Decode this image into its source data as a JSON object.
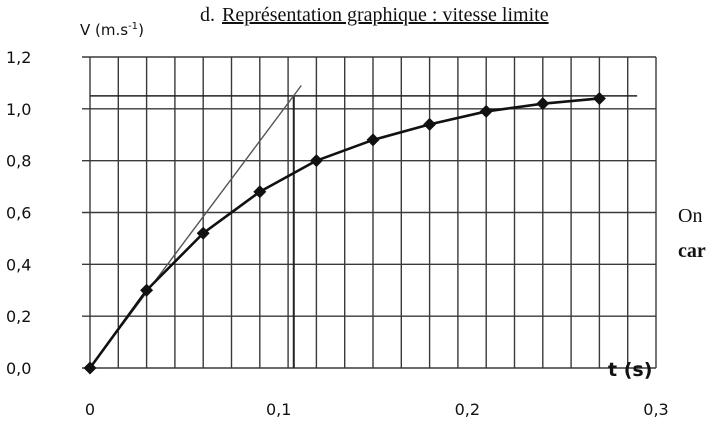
{
  "heading": "d.",
  "heading_link": "Représentation graphique : vitesse limite",
  "side_text_1": "On",
  "side_text_2": "car",
  "chart_data": {
    "type": "line",
    "xlabel": "t (s)",
    "ylabel": "V (m.s",
    "ylabel_sup": "-1",
    "ylabel_end": ")",
    "xlim": [
      0,
      0.3
    ],
    "ylim": [
      0,
      1.2
    ],
    "x_ticks": [
      "0",
      "0,1",
      "0,2",
      "0,3"
    ],
    "y_ticks": [
      "0,0",
      "0,2",
      "0,4",
      "0,6",
      "0,8",
      "1,0",
      "1,2"
    ],
    "grid": true,
    "series": [
      {
        "x": [
          0,
          0.03,
          0.06,
          0.09,
          0.12,
          0.15,
          0.18,
          0.21,
          0.24,
          0.27
        ],
        "values": [
          0.0,
          0.3,
          0.52,
          0.68,
          0.8,
          0.88,
          0.94,
          0.99,
          1.02,
          1.04
        ]
      }
    ],
    "tangent": {
      "x": [
        0,
        0.112
      ],
      "y": [
        0,
        1.09
      ]
    },
    "asymptote": {
      "y": 1.05,
      "x_end": 0.29
    },
    "vertical_marker": {
      "x": 0.108,
      "y_top": 1.05
    }
  }
}
